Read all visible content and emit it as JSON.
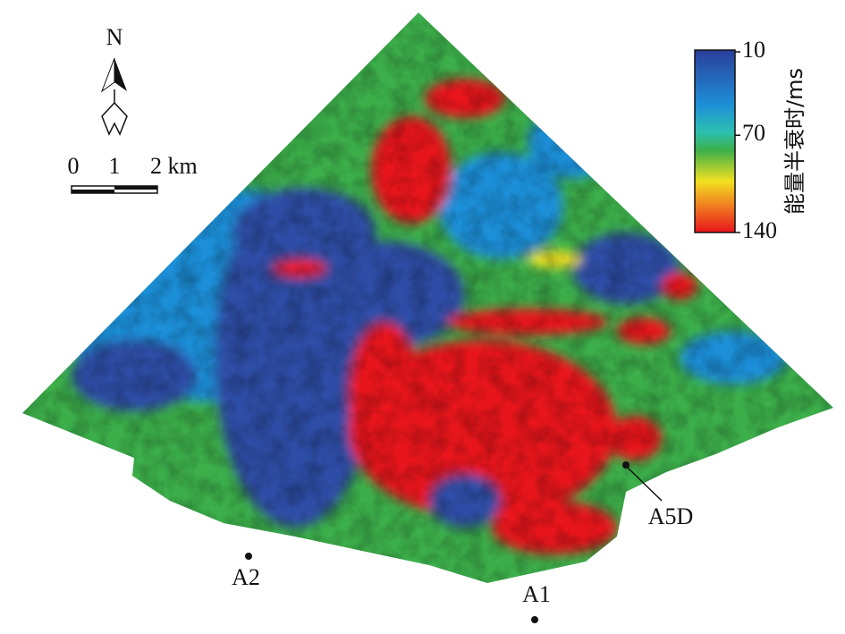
{
  "north_label": "N",
  "scale_bar": {
    "labels": [
      "0",
      "1",
      "2 km"
    ]
  },
  "colorbar": {
    "label": "能量半衰时/ms",
    "lim": [
      10,
      140
    ],
    "ticks": [
      10,
      70,
      140
    ]
  },
  "wells": [
    {
      "label": "A5D"
    },
    {
      "label": "A2"
    },
    {
      "label": "A1"
    }
  ]
}
